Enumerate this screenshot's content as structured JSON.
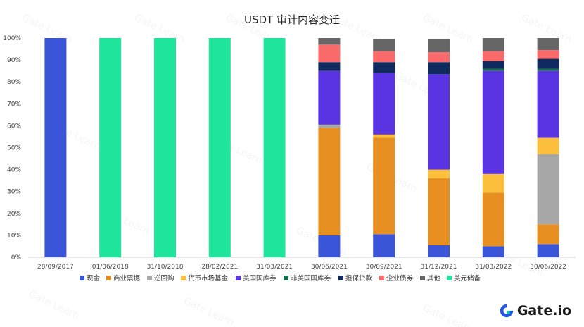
{
  "chart_data": {
    "type": "bar",
    "stacked": true,
    "title": "USDT 审计内容变迁",
    "categories": [
      "28/09/2017",
      "01/06/2018",
      "31/10/2018",
      "28/02/2021",
      "31/03/2021",
      "30/06/2021",
      "30/09/2021",
      "31/12/2021",
      "31/03/2022",
      "30/06/2022"
    ],
    "ylim": [
      0,
      100
    ],
    "yticks": [
      "0%",
      "10%",
      "20%",
      "30%",
      "40%",
      "50%",
      "60%",
      "70%",
      "80%",
      "90%",
      "100%"
    ],
    "legend_position": "bottom",
    "series": [
      {
        "name": "现金",
        "color": "#3b55d8",
        "values": [
          100,
          0,
          0,
          0,
          0,
          10,
          10.5,
          5.5,
          5,
          6
        ]
      },
      {
        "name": "商业票据",
        "color": "#e88f22",
        "values": [
          0,
          0,
          0,
          0,
          0,
          49,
          44,
          30.5,
          24.5,
          9
        ]
      },
      {
        "name": "逆回购",
        "color": "#a7a7a7",
        "values": [
          0,
          0,
          0,
          0,
          0,
          1.5,
          0,
          0,
          0,
          32
        ]
      },
      {
        "name": "货币市场基金",
        "color": "#fbbf3b",
        "values": [
          0,
          0,
          0,
          0,
          0,
          0,
          1.5,
          4,
          8.5,
          7.5
        ]
      },
      {
        "name": "美国国库券",
        "color": "#5a33e2",
        "values": [
          0,
          0,
          0,
          0,
          0,
          24.5,
          28,
          43.5,
          47,
          30.5
        ]
      },
      {
        "name": "非美国国库券",
        "color": "#17714a",
        "values": [
          0,
          0,
          0,
          0,
          0,
          0,
          0,
          0,
          1,
          1
        ]
      },
      {
        "name": "担保贷款",
        "color": "#0f2a5e",
        "values": [
          0,
          0,
          0,
          0,
          0,
          4,
          5,
          5.5,
          3.5,
          4.5
        ]
      },
      {
        "name": "企业债券",
        "color": "#fb6a6a",
        "values": [
          0,
          0,
          0,
          0,
          0,
          8,
          5,
          4.5,
          4.5,
          4
        ]
      },
      {
        "name": "其他",
        "color": "#666666",
        "values": [
          0,
          0,
          0,
          0,
          0,
          3,
          5.5,
          6,
          6,
          5.5
        ]
      },
      {
        "name": "美元储备",
        "color": "#1ee49c",
        "values": [
          0,
          100,
          100,
          100,
          100,
          0,
          0,
          0,
          0,
          0
        ]
      }
    ]
  },
  "watermark": "Gate Learn",
  "brand": {
    "name": "Gate.io",
    "color": "#2354e6"
  }
}
